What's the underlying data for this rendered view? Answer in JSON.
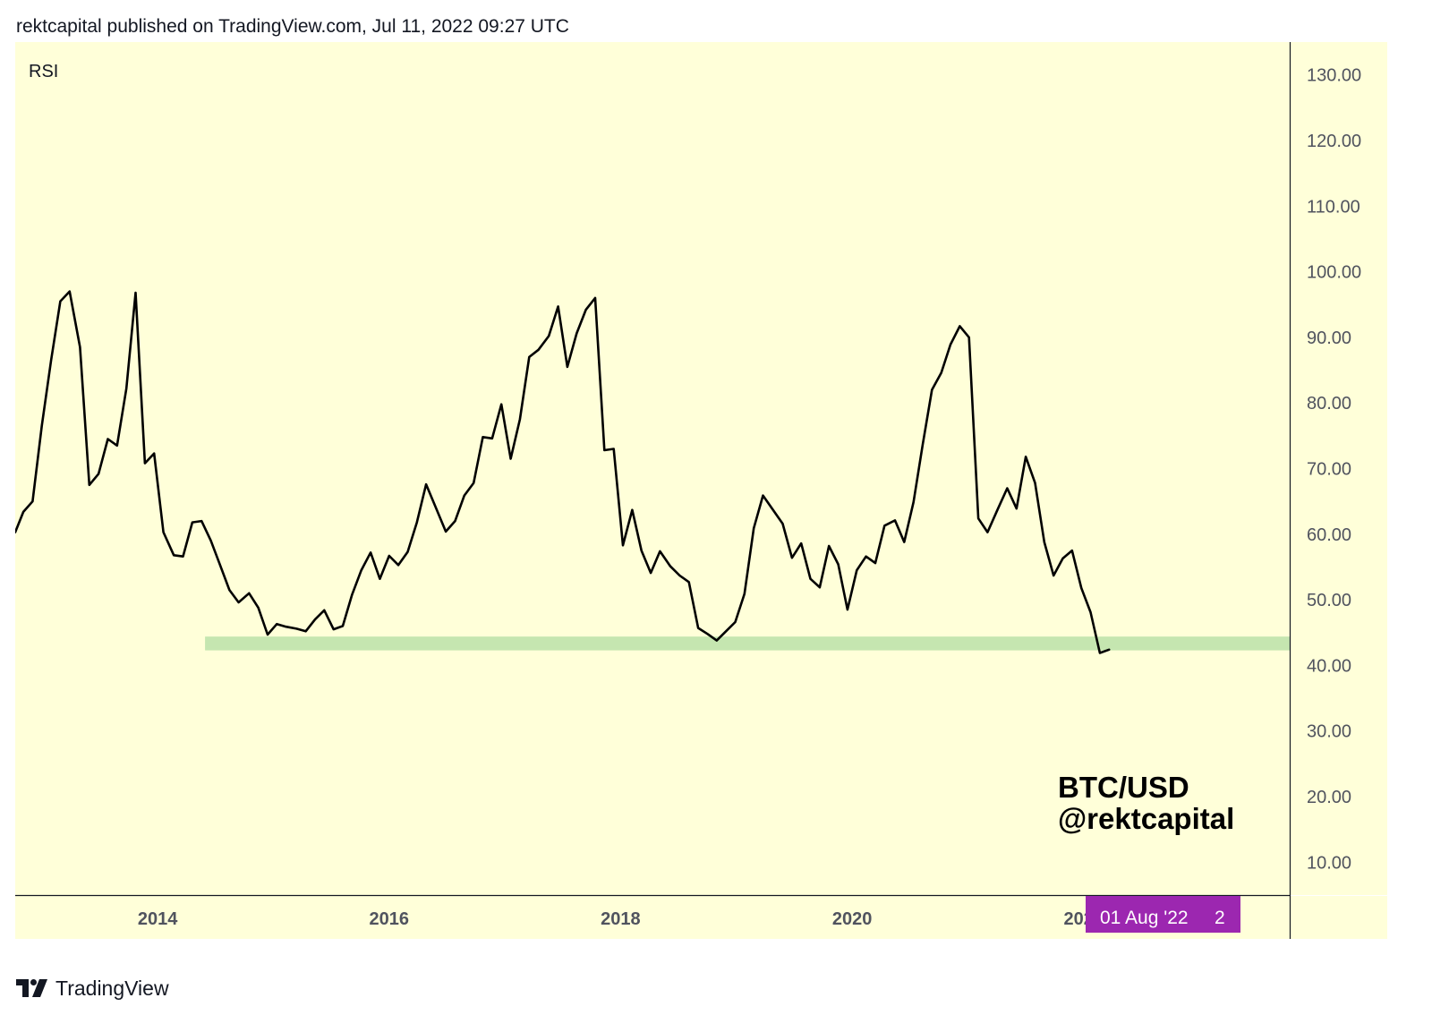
{
  "header": {
    "publish_line": "rektcapital published on TradingView.com, Jul 11, 2022 09:27 UTC"
  },
  "footer": {
    "brand": "TradingView"
  },
  "colors": {
    "pane_background": "#ffffd9",
    "line": "#000000",
    "support_band": "#c5e6b0",
    "date_badge": "#9c27b0",
    "axis_text": "#50535e"
  },
  "chart_data": {
    "type": "line",
    "indicator_label": "RSI",
    "watermark": [
      "BTC/USD",
      "@rektcapital"
    ],
    "date_badge": {
      "date_label": "01 Aug '22",
      "extra_label": "2"
    },
    "ylim": [
      5,
      135
    ],
    "y_ticks": [
      "130.00",
      "120.00",
      "110.00",
      "100.00",
      "90.00",
      "80.00",
      "70.00",
      "60.00",
      "50.00",
      "40.00",
      "30.00",
      "20.00",
      "10.00"
    ],
    "x_ticks": [
      {
        "year": 2014,
        "label": "2014"
      },
      {
        "year": 2016,
        "label": "2016"
      },
      {
        "year": 2018,
        "label": "2018"
      },
      {
        "year": 2020,
        "label": "2020"
      },
      {
        "year": 2022,
        "label": "2022"
      }
    ],
    "xlim": [
      2012.77,
      2023.78
    ],
    "support_band": {
      "y_low": 42.3,
      "y_high": 44.4,
      "x_start": 2014.41
    },
    "series": [
      {
        "values": [
          [
            2012.77,
            60.3
          ],
          [
            2012.84,
            63.4
          ],
          [
            2012.92,
            65.0
          ],
          [
            2013.0,
            76.5
          ],
          [
            2013.08,
            86.5
          ],
          [
            2013.16,
            95.5
          ],
          [
            2013.24,
            97.0
          ],
          [
            2013.33,
            88.5
          ],
          [
            2013.41,
            67.5
          ],
          [
            2013.49,
            69.2
          ],
          [
            2013.57,
            74.5
          ],
          [
            2013.65,
            73.5
          ],
          [
            2013.73,
            82.2
          ],
          [
            2013.81,
            96.8
          ],
          [
            2013.89,
            70.8
          ],
          [
            2013.97,
            72.3
          ],
          [
            2014.05,
            60.3
          ],
          [
            2014.14,
            56.8
          ],
          [
            2014.22,
            56.6
          ],
          [
            2014.3,
            61.8
          ],
          [
            2014.38,
            62.0
          ],
          [
            2014.46,
            59.0
          ],
          [
            2014.54,
            55.3
          ],
          [
            2014.62,
            51.5
          ],
          [
            2014.7,
            49.6
          ],
          [
            2014.79,
            51.0
          ],
          [
            2014.87,
            48.8
          ],
          [
            2014.95,
            44.7
          ],
          [
            2015.03,
            46.3
          ],
          [
            2015.11,
            45.9
          ],
          [
            2015.2,
            45.6
          ],
          [
            2015.28,
            45.2
          ],
          [
            2015.36,
            47.0
          ],
          [
            2015.44,
            48.4
          ],
          [
            2015.52,
            45.5
          ],
          [
            2015.6,
            46.0
          ],
          [
            2015.68,
            50.8
          ],
          [
            2015.76,
            54.5
          ],
          [
            2015.84,
            57.2
          ],
          [
            2015.92,
            53.2
          ],
          [
            2016.0,
            56.7
          ],
          [
            2016.08,
            55.3
          ],
          [
            2016.16,
            57.3
          ],
          [
            2016.24,
            61.8
          ],
          [
            2016.32,
            67.6
          ],
          [
            2016.4,
            64.2
          ],
          [
            2016.49,
            60.4
          ],
          [
            2016.57,
            62.0
          ],
          [
            2016.65,
            65.9
          ],
          [
            2016.73,
            67.8
          ],
          [
            2016.81,
            74.8
          ],
          [
            2016.89,
            74.6
          ],
          [
            2016.97,
            79.8
          ],
          [
            2017.05,
            71.5
          ],
          [
            2017.13,
            77.5
          ],
          [
            2017.21,
            87.0
          ],
          [
            2017.29,
            88.1
          ],
          [
            2017.38,
            90.2
          ],
          [
            2017.46,
            94.7
          ],
          [
            2017.54,
            85.5
          ],
          [
            2017.62,
            90.6
          ],
          [
            2017.7,
            94.2
          ],
          [
            2017.78,
            96.0
          ],
          [
            2017.86,
            72.8
          ],
          [
            2017.94,
            73.0
          ],
          [
            2018.02,
            58.3
          ],
          [
            2018.1,
            63.7
          ],
          [
            2018.18,
            57.5
          ],
          [
            2018.26,
            54.1
          ],
          [
            2018.34,
            57.4
          ],
          [
            2018.43,
            55.1
          ],
          [
            2018.51,
            53.7
          ],
          [
            2018.59,
            52.7
          ],
          [
            2018.67,
            45.7
          ],
          [
            2018.75,
            44.8
          ],
          [
            2018.83,
            43.8
          ],
          [
            2018.91,
            45.2
          ],
          [
            2018.99,
            46.6
          ],
          [
            2019.07,
            50.9
          ],
          [
            2019.15,
            60.9
          ],
          [
            2019.23,
            65.9
          ],
          [
            2019.32,
            63.6
          ],
          [
            2019.4,
            61.6
          ],
          [
            2019.48,
            56.4
          ],
          [
            2019.56,
            58.6
          ],
          [
            2019.64,
            53.2
          ],
          [
            2019.72,
            51.9
          ],
          [
            2019.8,
            58.2
          ],
          [
            2019.88,
            55.4
          ],
          [
            2019.96,
            48.5
          ],
          [
            2020.04,
            54.5
          ],
          [
            2020.12,
            56.6
          ],
          [
            2020.2,
            55.6
          ],
          [
            2020.28,
            61.3
          ],
          [
            2020.37,
            62.1
          ],
          [
            2020.45,
            58.8
          ],
          [
            2020.53,
            64.9
          ],
          [
            2020.61,
            73.7
          ],
          [
            2020.69,
            82.0
          ],
          [
            2020.77,
            84.6
          ],
          [
            2020.85,
            88.9
          ],
          [
            2020.93,
            91.7
          ],
          [
            2021.01,
            90.0
          ],
          [
            2021.09,
            62.4
          ],
          [
            2021.17,
            60.3
          ],
          [
            2021.26,
            63.9
          ],
          [
            2021.34,
            67.0
          ],
          [
            2021.42,
            63.9
          ],
          [
            2021.5,
            71.8
          ],
          [
            2021.58,
            67.8
          ],
          [
            2021.66,
            58.8
          ],
          [
            2021.74,
            53.7
          ],
          [
            2021.82,
            56.3
          ],
          [
            2021.9,
            57.5
          ],
          [
            2021.98,
            51.8
          ],
          [
            2022.06,
            48.1
          ],
          [
            2022.14,
            41.9
          ],
          [
            2022.22,
            42.4
          ]
        ]
      }
    ]
  }
}
